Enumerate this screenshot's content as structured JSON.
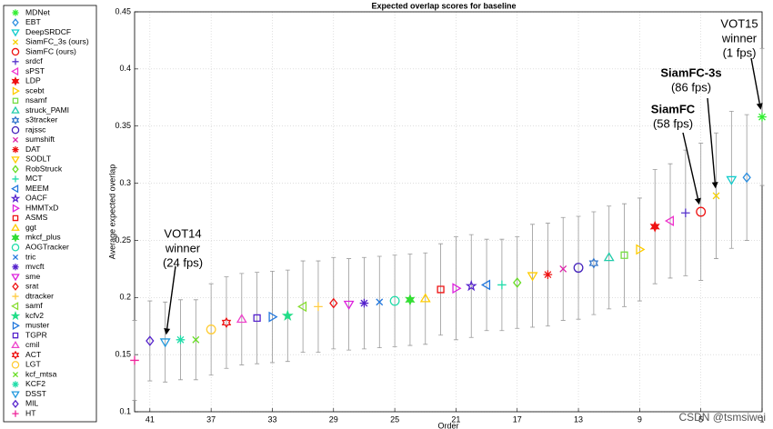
{
  "chart_data": {
    "type": "scatter",
    "title": "Expected overlap scores for baseline",
    "xlabel": "Order",
    "ylabel": "Average expected overlap",
    "xlim": [
      42,
      1
    ],
    "ylim": [
      0.1,
      0.45
    ],
    "xticks": [
      41,
      37,
      33,
      29,
      25,
      21,
      17,
      13,
      9,
      5,
      1
    ],
    "yticks": [
      0.1,
      0.15,
      0.2,
      0.25,
      0.3,
      0.35,
      0.4,
      0.45
    ],
    "grid": true,
    "series": [
      {
        "name": "MDNet",
        "color": "#33ee33",
        "marker": "asterisk",
        "x": [
          1
        ],
        "values": [
          0.358
        ],
        "errors": [
          0.06
        ]
      },
      {
        "name": "EBT",
        "color": "#2a8ee0",
        "marker": "diamond",
        "x": [
          2
        ],
        "values": [
          0.305
        ],
        "errors": [
          0.055
        ]
      },
      {
        "name": "DeepSRDCF",
        "color": "#11cccc",
        "marker": "tri-down",
        "x": [
          3
        ],
        "values": [
          0.303
        ],
        "errors": [
          0.06
        ]
      },
      {
        "name": "SiamFC_3s (ours)",
        "color": "#f5d000",
        "marker": "x",
        "x": [
          4
        ],
        "values": [
          0.289
        ],
        "errors": [
          0.055
        ]
      },
      {
        "name": "SiamFC (ours)",
        "color": "#ee1111",
        "marker": "circle",
        "x": [
          5
        ],
        "values": [
          0.275
        ],
        "errors": [
          0.06
        ]
      },
      {
        "name": "srdcf",
        "color": "#5533cc",
        "marker": "plus",
        "x": [
          6
        ],
        "values": [
          0.274
        ],
        "errors": [
          0.055
        ]
      },
      {
        "name": "sPST",
        "color": "#ee33cc",
        "marker": "tri-left",
        "x": [
          7
        ],
        "values": [
          0.267
        ],
        "errors": [
          0.05
        ]
      },
      {
        "name": "LDP",
        "color": "#ee1111",
        "marker": "star-filled",
        "x": [
          8
        ],
        "values": [
          0.262
        ],
        "errors": [
          0.05
        ]
      },
      {
        "name": "scebt",
        "color": "#ffcc00",
        "marker": "tri-right",
        "x": [
          9
        ],
        "values": [
          0.242
        ],
        "errors": [
          0.045
        ]
      },
      {
        "name": "nsamf",
        "color": "#77dd44",
        "marker": "square",
        "x": [
          10
        ],
        "values": [
          0.237
        ],
        "errors": [
          0.045
        ]
      },
      {
        "name": "struck_PAMI",
        "color": "#22ccaa",
        "marker": "tri-up",
        "x": [
          11
        ],
        "values": [
          0.235
        ],
        "errors": [
          0.045
        ]
      },
      {
        "name": "s3tracker",
        "color": "#3377cc",
        "marker": "hexagram",
        "x": [
          12
        ],
        "values": [
          0.23
        ],
        "errors": [
          0.045
        ]
      },
      {
        "name": "rajssc",
        "color": "#4422bb",
        "marker": "circle",
        "x": [
          13
        ],
        "values": [
          0.226
        ],
        "errors": [
          0.045
        ]
      },
      {
        "name": "sumshift",
        "color": "#dd22aa",
        "marker": "x",
        "x": [
          14
        ],
        "values": [
          0.225
        ],
        "errors": [
          0.045
        ]
      },
      {
        "name": "DAT",
        "color": "#ee1111",
        "marker": "asterisk",
        "x": [
          15
        ],
        "values": [
          0.22
        ],
        "errors": [
          0.045
        ]
      },
      {
        "name": "SODLT",
        "color": "#ffcc00",
        "marker": "tri-down",
        "x": [
          16
        ],
        "values": [
          0.219
        ],
        "errors": [
          0.045
        ]
      },
      {
        "name": "RobStruck",
        "color": "#66dd22",
        "marker": "diamond",
        "x": [
          17
        ],
        "values": [
          0.213
        ],
        "errors": [
          0.04
        ]
      },
      {
        "name": "MCT",
        "color": "#22ddaa",
        "marker": "plus",
        "x": [
          18
        ],
        "values": [
          0.211
        ],
        "errors": [
          0.04
        ]
      },
      {
        "name": "MEEM",
        "color": "#2277dd",
        "marker": "tri-left",
        "x": [
          19
        ],
        "values": [
          0.211
        ],
        "errors": [
          0.04
        ]
      },
      {
        "name": "OACF",
        "color": "#5522cc",
        "marker": "pentagram",
        "x": [
          20
        ],
        "values": [
          0.21
        ],
        "errors": [
          0.045
        ]
      },
      {
        "name": "HMMTxD",
        "color": "#dd22dd",
        "marker": "tri-right",
        "x": [
          21
        ],
        "values": [
          0.208
        ],
        "errors": [
          0.045
        ]
      },
      {
        "name": "ASMS",
        "color": "#ee1111",
        "marker": "square",
        "x": [
          22
        ],
        "values": [
          0.207
        ],
        "errors": [
          0.04
        ]
      },
      {
        "name": "ggt",
        "color": "#ffcc00",
        "marker": "tri-up",
        "x": [
          23
        ],
        "values": [
          0.199
        ],
        "errors": [
          0.04
        ]
      },
      {
        "name": "mkcf_plus",
        "color": "#33dd33",
        "marker": "star-filled",
        "x": [
          24
        ],
        "values": [
          0.198
        ],
        "errors": [
          0.04
        ]
      },
      {
        "name": "AOGTracker",
        "color": "#22ddaa",
        "marker": "circle",
        "x": [
          25
        ],
        "values": [
          0.197
        ],
        "errors": [
          0.04
        ]
      },
      {
        "name": "tric",
        "color": "#2277dd",
        "marker": "x",
        "x": [
          26
        ],
        "values": [
          0.196
        ],
        "errors": [
          0.04
        ]
      },
      {
        "name": "mvcft",
        "color": "#5522cc",
        "marker": "asterisk",
        "x": [
          27
        ],
        "values": [
          0.195
        ],
        "errors": [
          0.04
        ]
      },
      {
        "name": "sme",
        "color": "#dd22dd",
        "marker": "tri-down",
        "x": [
          28
        ],
        "values": [
          0.194
        ],
        "errors": [
          0.04
        ]
      },
      {
        "name": "srat",
        "color": "#ee1111",
        "marker": "diamond",
        "x": [
          29
        ],
        "values": [
          0.195
        ],
        "errors": [
          0.04
        ]
      },
      {
        "name": "dtracker",
        "color": "#ffcc44",
        "marker": "plus",
        "x": [
          30
        ],
        "values": [
          0.192
        ],
        "errors": [
          0.04
        ]
      },
      {
        "name": "samf",
        "color": "#88dd33",
        "marker": "tri-left",
        "x": [
          31
        ],
        "values": [
          0.192
        ],
        "errors": [
          0.04
        ]
      },
      {
        "name": "kcfv2",
        "color": "#22dd88",
        "marker": "pentagram-filled",
        "x": [
          32
        ],
        "values": [
          0.184
        ],
        "errors": [
          0.04
        ]
      },
      {
        "name": "muster",
        "color": "#2277dd",
        "marker": "tri-right",
        "x": [
          33
        ],
        "values": [
          0.183
        ],
        "errors": [
          0.04
        ]
      },
      {
        "name": "TGPR",
        "color": "#5522cc",
        "marker": "square",
        "x": [
          34
        ],
        "values": [
          0.182
        ],
        "errors": [
          0.04
        ]
      },
      {
        "name": "cmil",
        "color": "#ee44cc",
        "marker": "tri-up",
        "x": [
          35
        ],
        "values": [
          0.181
        ],
        "errors": [
          0.04
        ]
      },
      {
        "name": "ACT",
        "color": "#ee1111",
        "marker": "hexagram",
        "x": [
          36
        ],
        "values": [
          0.178
        ],
        "errors": [
          0.04
        ]
      },
      {
        "name": "LGT",
        "color": "#ffcc33",
        "marker": "circle",
        "x": [
          37
        ],
        "values": [
          0.172
        ],
        "errors": [
          0.04
        ]
      },
      {
        "name": "kcf_mtsa",
        "color": "#66dd22",
        "marker": "x",
        "x": [
          38
        ],
        "values": [
          0.163
        ],
        "errors": [
          0.035
        ]
      },
      {
        "name": "KCF2",
        "color": "#22ddaa",
        "marker": "asterisk",
        "x": [
          39
        ],
        "values": [
          0.163
        ],
        "errors": [
          0.035
        ]
      },
      {
        "name": "DSST",
        "color": "#2299dd",
        "marker": "tri-down",
        "x": [
          40
        ],
        "values": [
          0.161
        ],
        "errors": [
          0.035
        ]
      },
      {
        "name": "MIL",
        "color": "#5522cc",
        "marker": "diamond",
        "x": [
          41
        ],
        "values": [
          0.162
        ],
        "errors": [
          0.035
        ]
      },
      {
        "name": "HT",
        "color": "#ee2299",
        "marker": "plus",
        "x": [
          42
        ],
        "values": [
          0.145
        ],
        "errors": [
          0.035
        ]
      }
    ],
    "annotations": [
      {
        "lines": [
          "VOT14",
          "winner",
          "(24 fps)"
        ]
      },
      {
        "lines": [
          "VOT15",
          "winner",
          "(1 fps)"
        ]
      },
      {
        "lines": [
          "SiamFC-3s",
          "(86 fps)"
        ]
      },
      {
        "lines": [
          "SiamFC",
          "(58 fps)"
        ]
      }
    ],
    "watermark": "CSDN @tsmsiwei"
  }
}
